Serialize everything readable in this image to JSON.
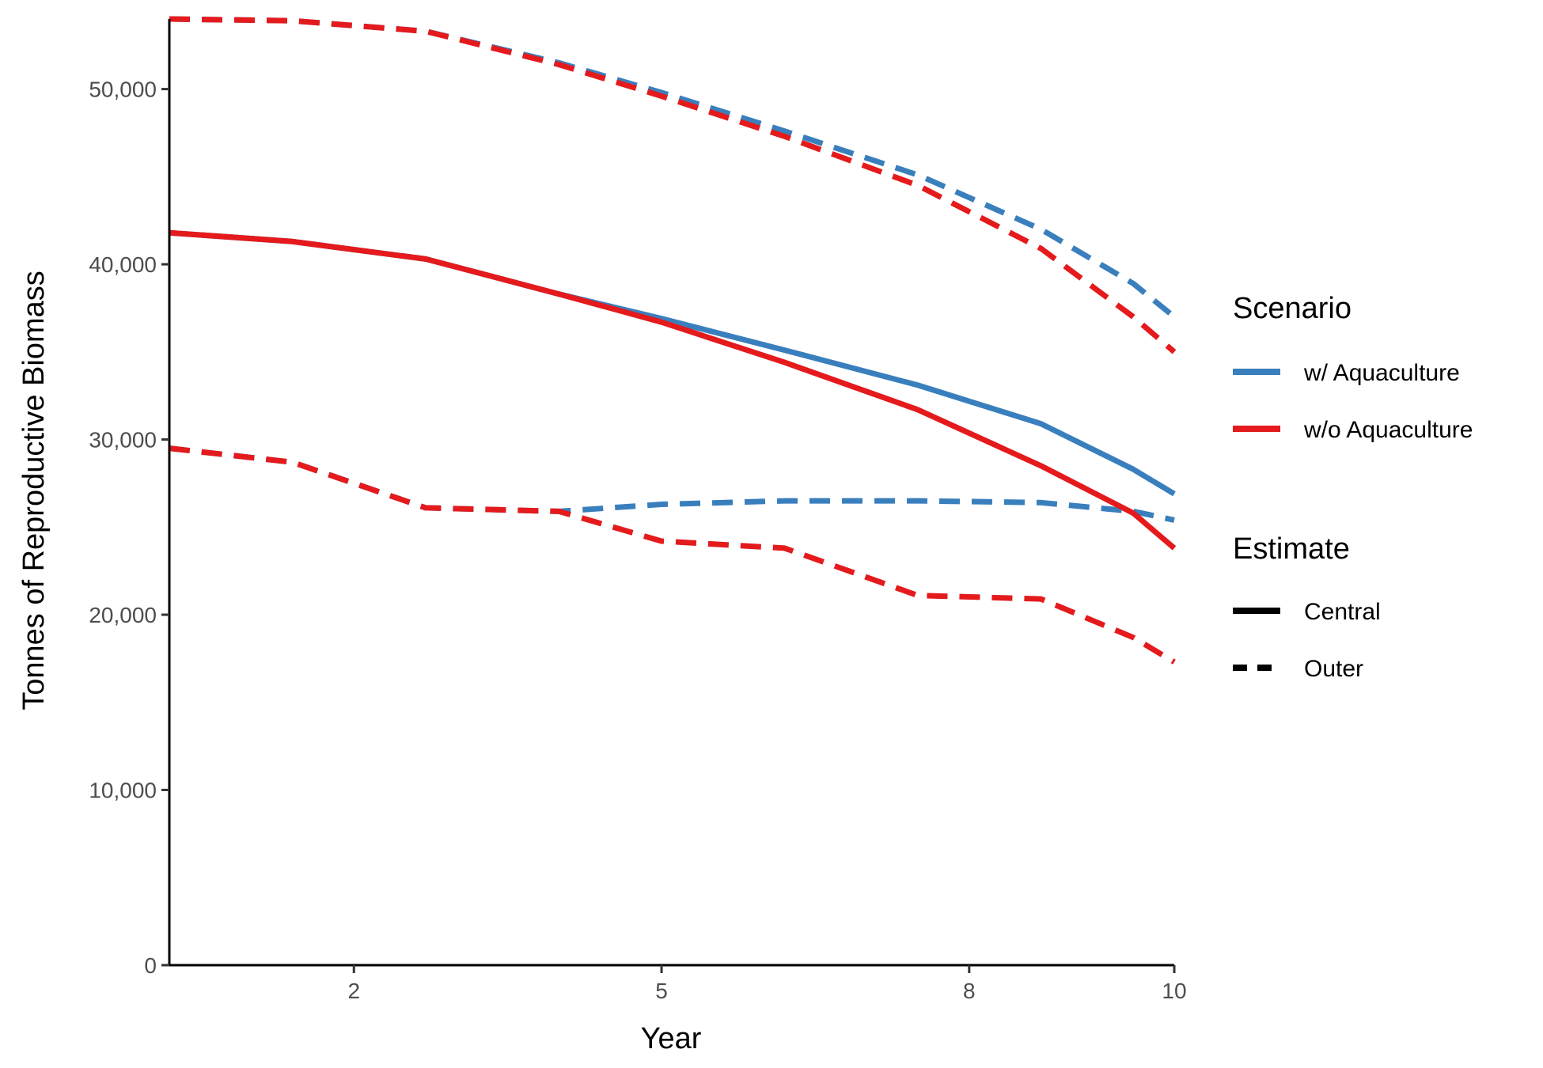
{
  "chart_data": {
    "type": "line",
    "xlabel": "Year",
    "ylabel": "Tonnes of Reproductive Biomass",
    "xlim": [
      0.2,
      10
    ],
    "ylim": [
      0,
      54000
    ],
    "x_ticks": [
      2,
      5,
      8,
      10
    ],
    "x_tick_labels": [
      "2",
      "5",
      "8",
      "10"
    ],
    "y_ticks": [
      0,
      10000,
      20000,
      30000,
      40000,
      50000
    ],
    "y_tick_labels": [
      "0",
      "10,000",
      "20,000",
      "30,000",
      "40,000",
      "50,000"
    ],
    "grid": false,
    "legend_position": "right",
    "legends": [
      {
        "title": "Scenario",
        "entries": [
          {
            "label": "w/ Aquaculture",
            "color": "#3a7fbd"
          },
          {
            "label": "w/o Aquaculture",
            "color": "#e41a1c"
          }
        ]
      },
      {
        "title": "Estimate",
        "entries": [
          {
            "label": "Central",
            "dash": "solid"
          },
          {
            "label": "Outer",
            "dash": "dashed"
          }
        ]
      }
    ],
    "x": [
      0.2,
      1.4,
      2.7,
      4.0,
      5.0,
      6.2,
      7.5,
      8.7,
      9.6,
      10.0
    ],
    "series": [
      {
        "name": "w/ Aquaculture",
        "estimate": "Central",
        "color": "#3a7fbd",
        "dash": "solid",
        "values": [
          41800,
          41300,
          40300,
          38300,
          36900,
          35100,
          33100,
          30900,
          28300,
          26900
        ]
      },
      {
        "name": "w/ Aquaculture",
        "estimate": "Outer",
        "color": "#3a7fbd",
        "dash": "dashed",
        "values": [
          54000,
          53900,
          53300,
          51500,
          49800,
          47600,
          45100,
          42000,
          38900,
          37000
        ]
      },
      {
        "name": "w/ Aquaculture",
        "estimate": "Outer",
        "color": "#3a7fbd",
        "dash": "dashed",
        "values": [
          29500,
          28700,
          26100,
          25900,
          26300,
          26500,
          26500,
          26400,
          25900,
          25400
        ]
      },
      {
        "name": "w/o Aquaculture",
        "estimate": "Central",
        "color": "#e41a1c",
        "dash": "solid",
        "values": [
          41800,
          41300,
          40300,
          38300,
          36700,
          34400,
          31700,
          28500,
          25800,
          23800
        ]
      },
      {
        "name": "w/o Aquaculture",
        "estimate": "Outer",
        "color": "#e41a1c",
        "dash": "dashed",
        "values": [
          54000,
          53900,
          53300,
          51400,
          49600,
          47300,
          44500,
          40900,
          37000,
          35000
        ]
      },
      {
        "name": "w/o Aquaculture",
        "estimate": "Outer",
        "color": "#e41a1c",
        "dash": "dashed",
        "values": [
          29500,
          28700,
          26100,
          25900,
          24200,
          23800,
          21100,
          20900,
          18700,
          17300
        ]
      }
    ]
  }
}
